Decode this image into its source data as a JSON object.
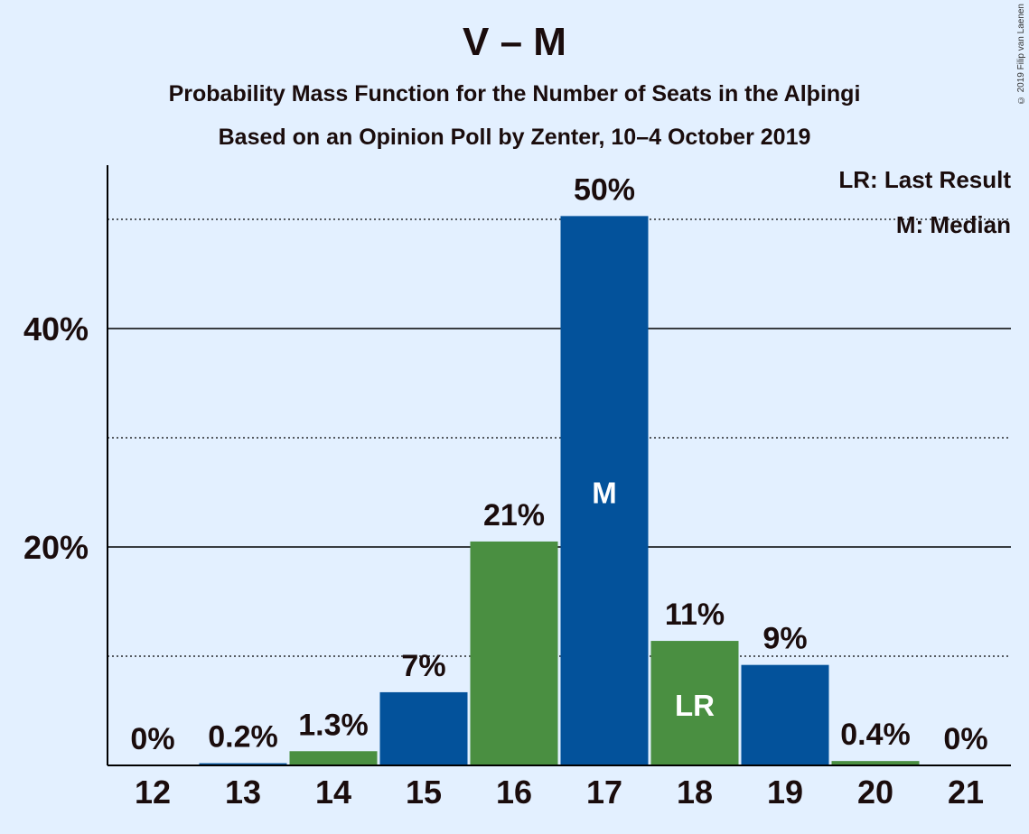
{
  "title": "V – M",
  "subtitle1": "Probability Mass Function for the Number of Seats in the Alþingi",
  "subtitle2": "Based on an Opinion Poll by Zenter, 10–4 October 2019",
  "copyright": "© 2019 Filip van Laenen",
  "legend": {
    "last_result": "LR: Last Result",
    "median": "M: Median"
  },
  "colors": {
    "background": "#e3f0ff",
    "blue": "#03529b",
    "green": "#4a8f41",
    "text": "#1a0c0c"
  },
  "chart_data": {
    "type": "bar",
    "categories": [
      "12",
      "13",
      "14",
      "15",
      "16",
      "17",
      "18",
      "19",
      "20",
      "21"
    ],
    "values": [
      0,
      0.2,
      1.3,
      6.7,
      20.5,
      50.3,
      11.4,
      9.2,
      0.4,
      0
    ],
    "value_labels": [
      "0%",
      "0.2%",
      "1.3%",
      "7%",
      "21%",
      "50%",
      "11%",
      "9%",
      "0.4%",
      "0%"
    ],
    "bar_colors": [
      "blue",
      "blue",
      "green",
      "blue",
      "green",
      "blue",
      "green",
      "blue",
      "green",
      "blue"
    ],
    "bar_markers": [
      "",
      "",
      "",
      "",
      "",
      "M",
      "LR",
      "",
      "",
      ""
    ],
    "yticks": [
      20,
      40
    ],
    "ytick_labels": [
      "20%",
      "40%"
    ],
    "minor_gridlines": [
      10,
      30,
      50
    ],
    "ylim": [
      0,
      55
    ],
    "grid": true,
    "legend_position": "top-right"
  }
}
